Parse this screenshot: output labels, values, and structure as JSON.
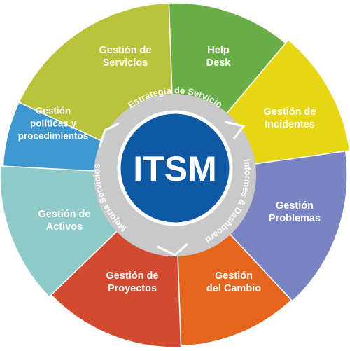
{
  "center": {
    "label": "ITSM"
  },
  "ring": [
    {
      "label": "Estrategia de Servicio"
    },
    {
      "label": "Informes & Dashboard"
    },
    {
      "label": "Mejoría Servicios"
    }
  ],
  "segments": [
    {
      "lines": [
        "Gestión de",
        "Servicios"
      ],
      "color": "#b8c33b"
    },
    {
      "lines": [
        "Help",
        "Desk"
      ],
      "color": "#6aae47"
    },
    {
      "lines": [
        "Gestión de",
        "Incidentes"
      ],
      "color": "#e6d613"
    },
    {
      "lines": [
        "Gestión",
        "Problemas"
      ],
      "color": "#7a84c2"
    },
    {
      "lines": [
        "Gestión",
        "del Cambio"
      ],
      "color": "#e6651c"
    },
    {
      "lines": [
        "Gestión de",
        "Proyectos"
      ],
      "color": "#d24a32"
    },
    {
      "lines": [
        "Gestión de",
        "Activos"
      ],
      "color": "#8ecac7"
    },
    {
      "lines": [
        "Gestión",
        "políticas y",
        "procedimientos"
      ],
      "color": "#3f97cf"
    }
  ],
  "colors": {
    "ring": "#c9c9c9",
    "center": "#0e58a4",
    "center_border": "#ffffff"
  }
}
